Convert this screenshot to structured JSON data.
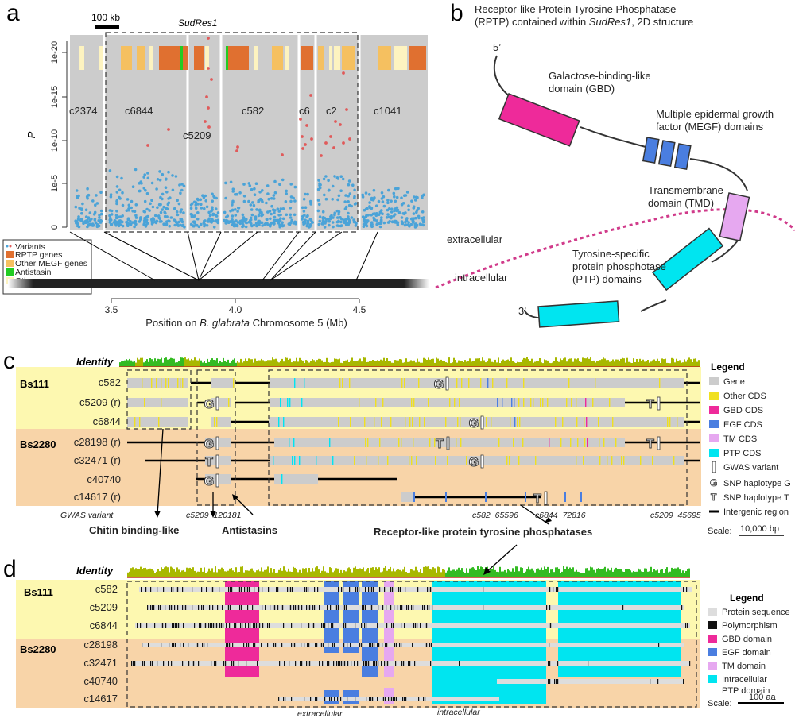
{
  "colors": {
    "grey": "#cccccc",
    "orange": "#e07030",
    "lightorange": "#f5c060",
    "green": "#22cc22",
    "cream": "#fdf3c0",
    "dot": "#4aa3d8",
    "red": "#e05a5a",
    "magenta": "#ee2a9a",
    "blue": "#4a7ee0",
    "pink": "#e6a8f0",
    "cyan": "#00e5f0",
    "yellowbg": "#fdf8b0",
    "peachbg": "#f8d4a8",
    "yellow": "#f0e020"
  },
  "panel_a": {
    "letter": "a",
    "scalebar": "100 kb",
    "region": "SudRes1",
    "ylabel": "P",
    "yticks": [
      "1e-20",
      "1e-15",
      "1e-10",
      "1e-5",
      "0"
    ],
    "contigs": [
      "c2374",
      "c6844",
      "c5209",
      "c582",
      "c6",
      "c2",
      "c1041"
    ],
    "legend": [
      "Variants",
      "RPTP genes",
      "Other MEGF genes",
      "Antistasin",
      "Other genes"
    ],
    "xticks": [
      "3.5",
      "4.0",
      "4.5"
    ],
    "xlabel_prefix": "Position on ",
    "xlabel_species": "B. glabrata",
    "xlabel_suffix": " Chromosome 5 (Mb)"
  },
  "panel_b": {
    "letter": "b",
    "title_line1": "Receptor-like Protein Tyrosine Phosphatase",
    "title_line2_pre": "(RPTP) contained within ",
    "title_line2_em": "SudRes1",
    "title_line2_post": ", 2D structure",
    "five": "5’",
    "three": "3’",
    "gbd1": "Galactose-binding-like",
    "gbd2": "domain (GBD)",
    "megf1": "Multiple epidermal growth",
    "megf2": "factor (MEGF) domains",
    "tmd1": "Transmembrane",
    "tmd2": "domain (TMD)",
    "ptp1": "Tyrosine-specific",
    "ptp2": "protein phosphotase",
    "ptp3": "(PTP) domains",
    "extracellular": "extracellular",
    "intracellular": "intracellular"
  },
  "panel_c": {
    "letter": "c",
    "identity": "Identity",
    "bs111": "Bs111",
    "bs2280": "Bs2280",
    "rows": [
      "c582",
      "c5209 (r)",
      "c6844",
      "c28198 (r)",
      "c32471 (r)",
      "c40740",
      "c14617 (r)"
    ],
    "legend_title": "Legend",
    "legend": [
      "Gene",
      "Other CDS",
      "GBD CDS",
      "EGF CDS",
      "TM CDS",
      "PTP CDS",
      "GWAS variant",
      "SNP haplotype G",
      "SNP haplotype T",
      "Intergenic region"
    ],
    "gwas_label": "GWAS variant",
    "variants": [
      "c5209_120181",
      "c582_65596",
      "c6844_72816",
      "c5209_45695"
    ],
    "groups": [
      "Chitin binding-like",
      "Antistasins",
      "Receptor-like protein tyrosine phosphatases"
    ],
    "scale_label": "Scale:",
    "scale_value": "10,000 bp",
    "G": "G",
    "T": "T"
  },
  "panel_d": {
    "letter": "d",
    "identity": "Identity",
    "bs111": "Bs111",
    "bs2280": "Bs2280",
    "rows": [
      "c582",
      "c5209",
      "c6844",
      "c28198",
      "c32471",
      "c40740",
      "c14617"
    ],
    "legend_title": "Legend",
    "legend": [
      "Protein sequence",
      "Polymorphism",
      "GBD domain",
      "EGF domain",
      "TM domain",
      "Intracellular",
      "PTP domain"
    ],
    "extracellular": "extracellular",
    "intracellular": "intracellular",
    "scale_label": "Scale:",
    "scale_value": "100 aa"
  }
}
